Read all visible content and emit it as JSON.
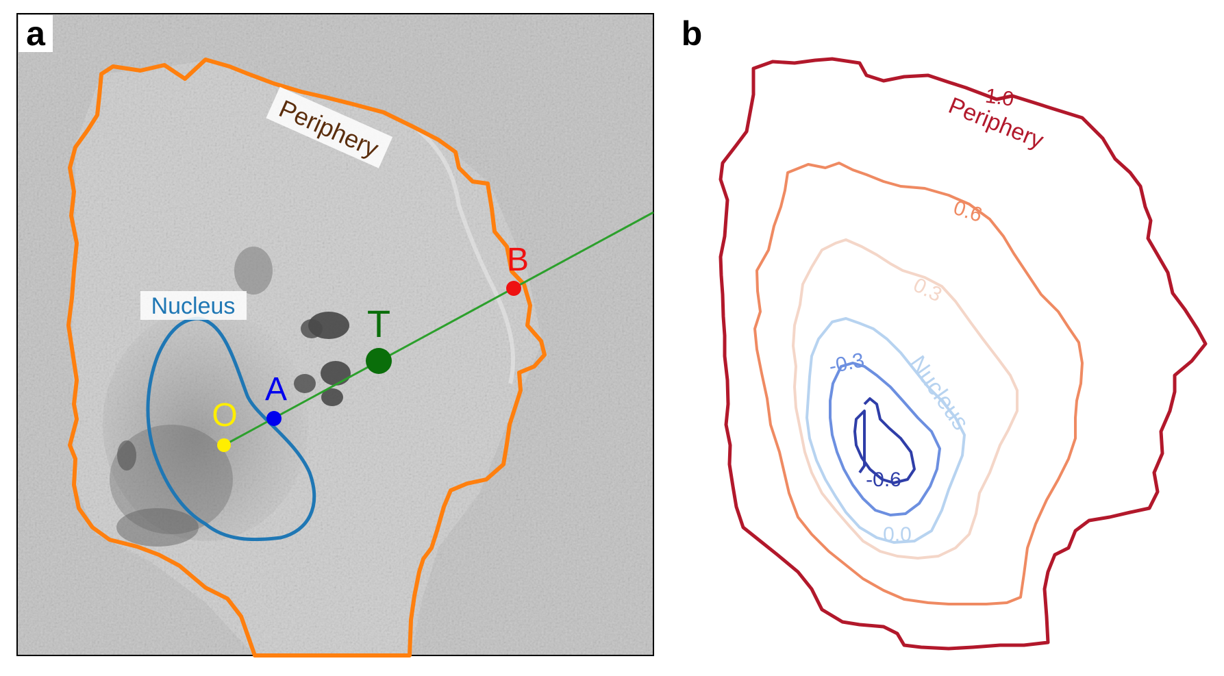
{
  "panel_a": {
    "letter": "a",
    "region_labels": {
      "periphery": "Periphery",
      "nucleus": "Nucleus"
    },
    "point_labels": {
      "O": "O",
      "A": "A",
      "T": "T",
      "B": "B"
    },
    "colors": {
      "periphery_outline": "#ff7f0e",
      "nucleus_outline": "#1f77b4",
      "ray": "#2ca02c",
      "point_O": "#ffee00",
      "point_A": "#0000ee",
      "point_T": "#0a6e0a",
      "point_B": "#ee1111",
      "periphery_text": "#5a2d0c"
    }
  },
  "panel_b": {
    "letter": "b",
    "contours": [
      {
        "level": "1.0",
        "color": "#b2182b",
        "text": "Periphery"
      },
      {
        "level": "0.6",
        "color": "#ef8a62"
      },
      {
        "level": "0.3",
        "color": "#f4d6c8"
      },
      {
        "level": "0.0",
        "color": "#b7d3f0",
        "text": "Nucleus"
      },
      {
        "level": "-0.3",
        "color": "#6c8fe0"
      },
      {
        "level": "-0.6",
        "color": "#2f3ea8"
      }
    ]
  }
}
